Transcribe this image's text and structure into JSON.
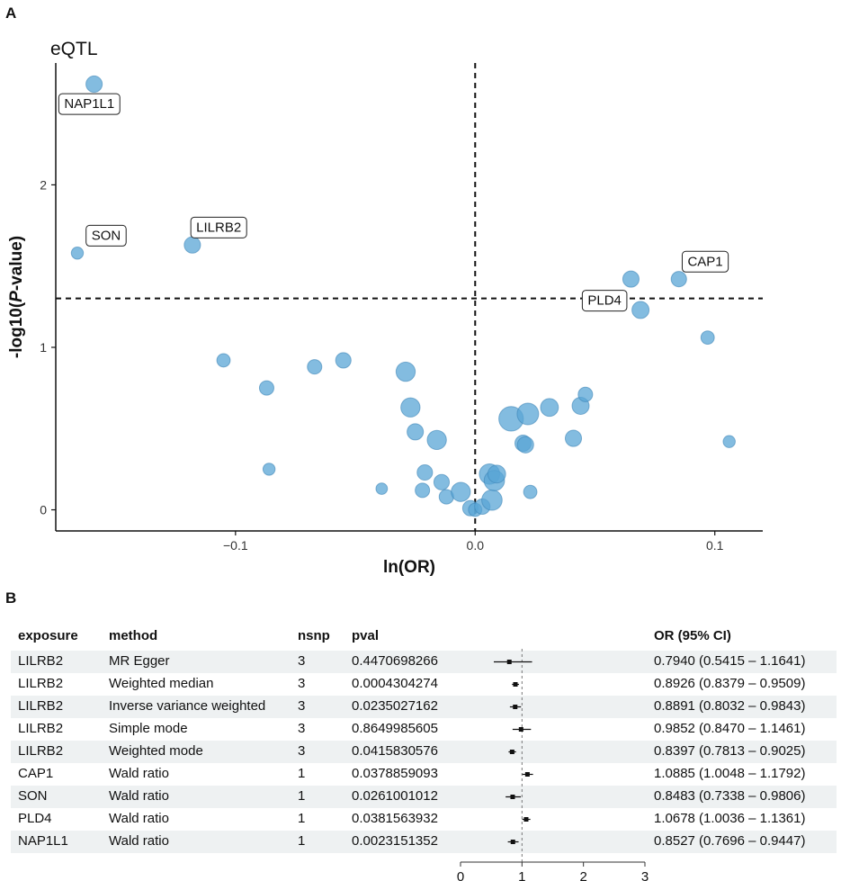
{
  "panels": {
    "a_letter": "A",
    "b_letter": "B"
  },
  "chart_data": [
    {
      "type": "scatter",
      "title": "eQTL",
      "xlabel": "ln(OR)",
      "ylabel_prefix": "-log10(",
      "ylabel_italic": "P",
      "ylabel_suffix": "-value)",
      "xlim": [
        -0.175,
        0.12
      ],
      "ylim": [
        -0.13,
        2.75
      ],
      "xticks": [
        -0.1,
        0.0,
        0.1
      ],
      "xtick_labels": [
        "−0.1",
        "0.0",
        "0.1"
      ],
      "yticks": [
        0,
        1,
        2
      ],
      "ytick_labels": [
        "0",
        "1",
        "2"
      ],
      "vline_x": 0,
      "hline_y": 1.301,
      "point_color": "#5aa5d6",
      "points": [
        {
          "x": -0.159,
          "y": 2.62,
          "size": 3
        },
        {
          "x": -0.166,
          "y": 1.58,
          "size": 1
        },
        {
          "x": -0.118,
          "y": 1.63,
          "size": 3
        },
        {
          "x": -0.105,
          "y": 0.92,
          "size": 1.5
        },
        {
          "x": -0.087,
          "y": 0.75,
          "size": 2
        },
        {
          "x": -0.086,
          "y": 0.25,
          "size": 1
        },
        {
          "x": -0.067,
          "y": 0.88,
          "size": 2
        },
        {
          "x": -0.055,
          "y": 0.92,
          "size": 2.5
        },
        {
          "x": -0.039,
          "y": 0.13,
          "size": 0.8
        },
        {
          "x": -0.029,
          "y": 0.85,
          "size": 5
        },
        {
          "x": -0.027,
          "y": 0.63,
          "size": 5
        },
        {
          "x": -0.025,
          "y": 0.48,
          "size": 3
        },
        {
          "x": -0.022,
          "y": 0.12,
          "size": 2
        },
        {
          "x": -0.021,
          "y": 0.23,
          "size": 2.5
        },
        {
          "x": -0.016,
          "y": 0.43,
          "size": 5
        },
        {
          "x": -0.014,
          "y": 0.17,
          "size": 2.5
        },
        {
          "x": -0.012,
          "y": 0.08,
          "size": 2
        },
        {
          "x": -0.006,
          "y": 0.11,
          "size": 5
        },
        {
          "x": -0.002,
          "y": 0.01,
          "size": 2.5
        },
        {
          "x": 0.0,
          "y": 0.0,
          "size": 1.5
        },
        {
          "x": 0.003,
          "y": 0.02,
          "size": 2.5
        },
        {
          "x": 0.006,
          "y": 0.22,
          "size": 6
        },
        {
          "x": 0.007,
          "y": 0.06,
          "size": 6
        },
        {
          "x": 0.008,
          "y": 0.18,
          "size": 6
        },
        {
          "x": 0.009,
          "y": 0.22,
          "size": 4
        },
        {
          "x": 0.015,
          "y": 0.56,
          "size": 10
        },
        {
          "x": 0.022,
          "y": 0.59,
          "size": 7
        },
        {
          "x": 0.02,
          "y": 0.41,
          "size": 3
        },
        {
          "x": 0.021,
          "y": 0.4,
          "size": 3
        },
        {
          "x": 0.023,
          "y": 0.11,
          "size": 1.5
        },
        {
          "x": 0.031,
          "y": 0.63,
          "size": 4
        },
        {
          "x": 0.041,
          "y": 0.44,
          "size": 3
        },
        {
          "x": 0.044,
          "y": 0.64,
          "size": 3.5
        },
        {
          "x": 0.046,
          "y": 0.71,
          "size": 2
        },
        {
          "x": 0.065,
          "y": 1.42,
          "size": 3
        },
        {
          "x": 0.069,
          "y": 1.23,
          "size": 3.5
        },
        {
          "x": 0.085,
          "y": 1.42,
          "size": 2.5
        },
        {
          "x": 0.097,
          "y": 1.06,
          "size": 1.5
        },
        {
          "x": 0.106,
          "y": 0.42,
          "size": 1
        }
      ],
      "labels": [
        {
          "text": "NAP1L1",
          "x": -0.161,
          "y": 2.5
        },
        {
          "text": "SON",
          "x": -0.154,
          "y": 1.69
        },
        {
          "text": "LILRB2",
          "x": -0.107,
          "y": 1.74
        },
        {
          "text": "PLD4",
          "x": 0.054,
          "y": 1.29
        },
        {
          "text": "CAP1",
          "x": 0.096,
          "y": 1.53
        }
      ]
    },
    {
      "type": "table",
      "columns": [
        "exposure",
        "method",
        "nsnp",
        "pval",
        "OR (95% CI)"
      ],
      "rows": [
        {
          "exposure": "LILRB2",
          "method": "MR Egger",
          "nsnp": "3",
          "pval": "0.4470698266",
          "or_ci": "0.7940 (0.5415 – 1.1641)",
          "or": 0.794,
          "lo": 0.5415,
          "hi": 1.1641
        },
        {
          "exposure": "LILRB2",
          "method": "Weighted median",
          "nsnp": "3",
          "pval": "0.0004304274",
          "or_ci": "0.8926 (0.8379 – 0.9509)",
          "or": 0.8926,
          "lo": 0.8379,
          "hi": 0.9509
        },
        {
          "exposure": "LILRB2",
          "method": "Inverse variance weighted",
          "nsnp": "3",
          "pval": "0.0235027162",
          "or_ci": "0.8891 (0.8032 – 0.9843)",
          "or": 0.8891,
          "lo": 0.8032,
          "hi": 0.9843
        },
        {
          "exposure": "LILRB2",
          "method": "Simple mode",
          "nsnp": "3",
          "pval": "0.8649985605",
          "or_ci": "0.9852 (0.8470 – 1.1461)",
          "or": 0.9852,
          "lo": 0.847,
          "hi": 1.1461
        },
        {
          "exposure": "LILRB2",
          "method": "Weighted mode",
          "nsnp": "3",
          "pval": "0.0415830576",
          "or_ci": "0.8397 (0.7813 – 0.9025)",
          "or": 0.8397,
          "lo": 0.7813,
          "hi": 0.9025
        },
        {
          "exposure": "CAP1",
          "method": "Wald ratio",
          "nsnp": "1",
          "pval": "0.0378859093",
          "or_ci": "1.0885 (1.0048 – 1.1792)",
          "or": 1.0885,
          "lo": 1.0048,
          "hi": 1.1792
        },
        {
          "exposure": "SON",
          "method": "Wald ratio",
          "nsnp": "1",
          "pval": "0.0261001012",
          "or_ci": "0.8483 (0.7338 – 0.9806)",
          "or": 0.8483,
          "lo": 0.7338,
          "hi": 0.9806
        },
        {
          "exposure": "PLD4",
          "method": "Wald ratio",
          "nsnp": "1",
          "pval": "0.0381563932",
          "or_ci": "1.0678 (1.0036 – 1.1361)",
          "or": 1.0678,
          "lo": 1.0036,
          "hi": 1.1361
        },
        {
          "exposure": "NAP1L1",
          "method": "Wald ratio",
          "nsnp": "1",
          "pval": "0.0023151352",
          "or_ci": "0.8527 (0.7696 – 0.9447)",
          "or": 0.8527,
          "lo": 0.7696,
          "hi": 0.9447
        }
      ],
      "forest_axis": {
        "min": 0,
        "max": 3,
        "ticks": [
          0,
          1,
          2,
          3
        ],
        "ref_line": 1
      }
    }
  ]
}
